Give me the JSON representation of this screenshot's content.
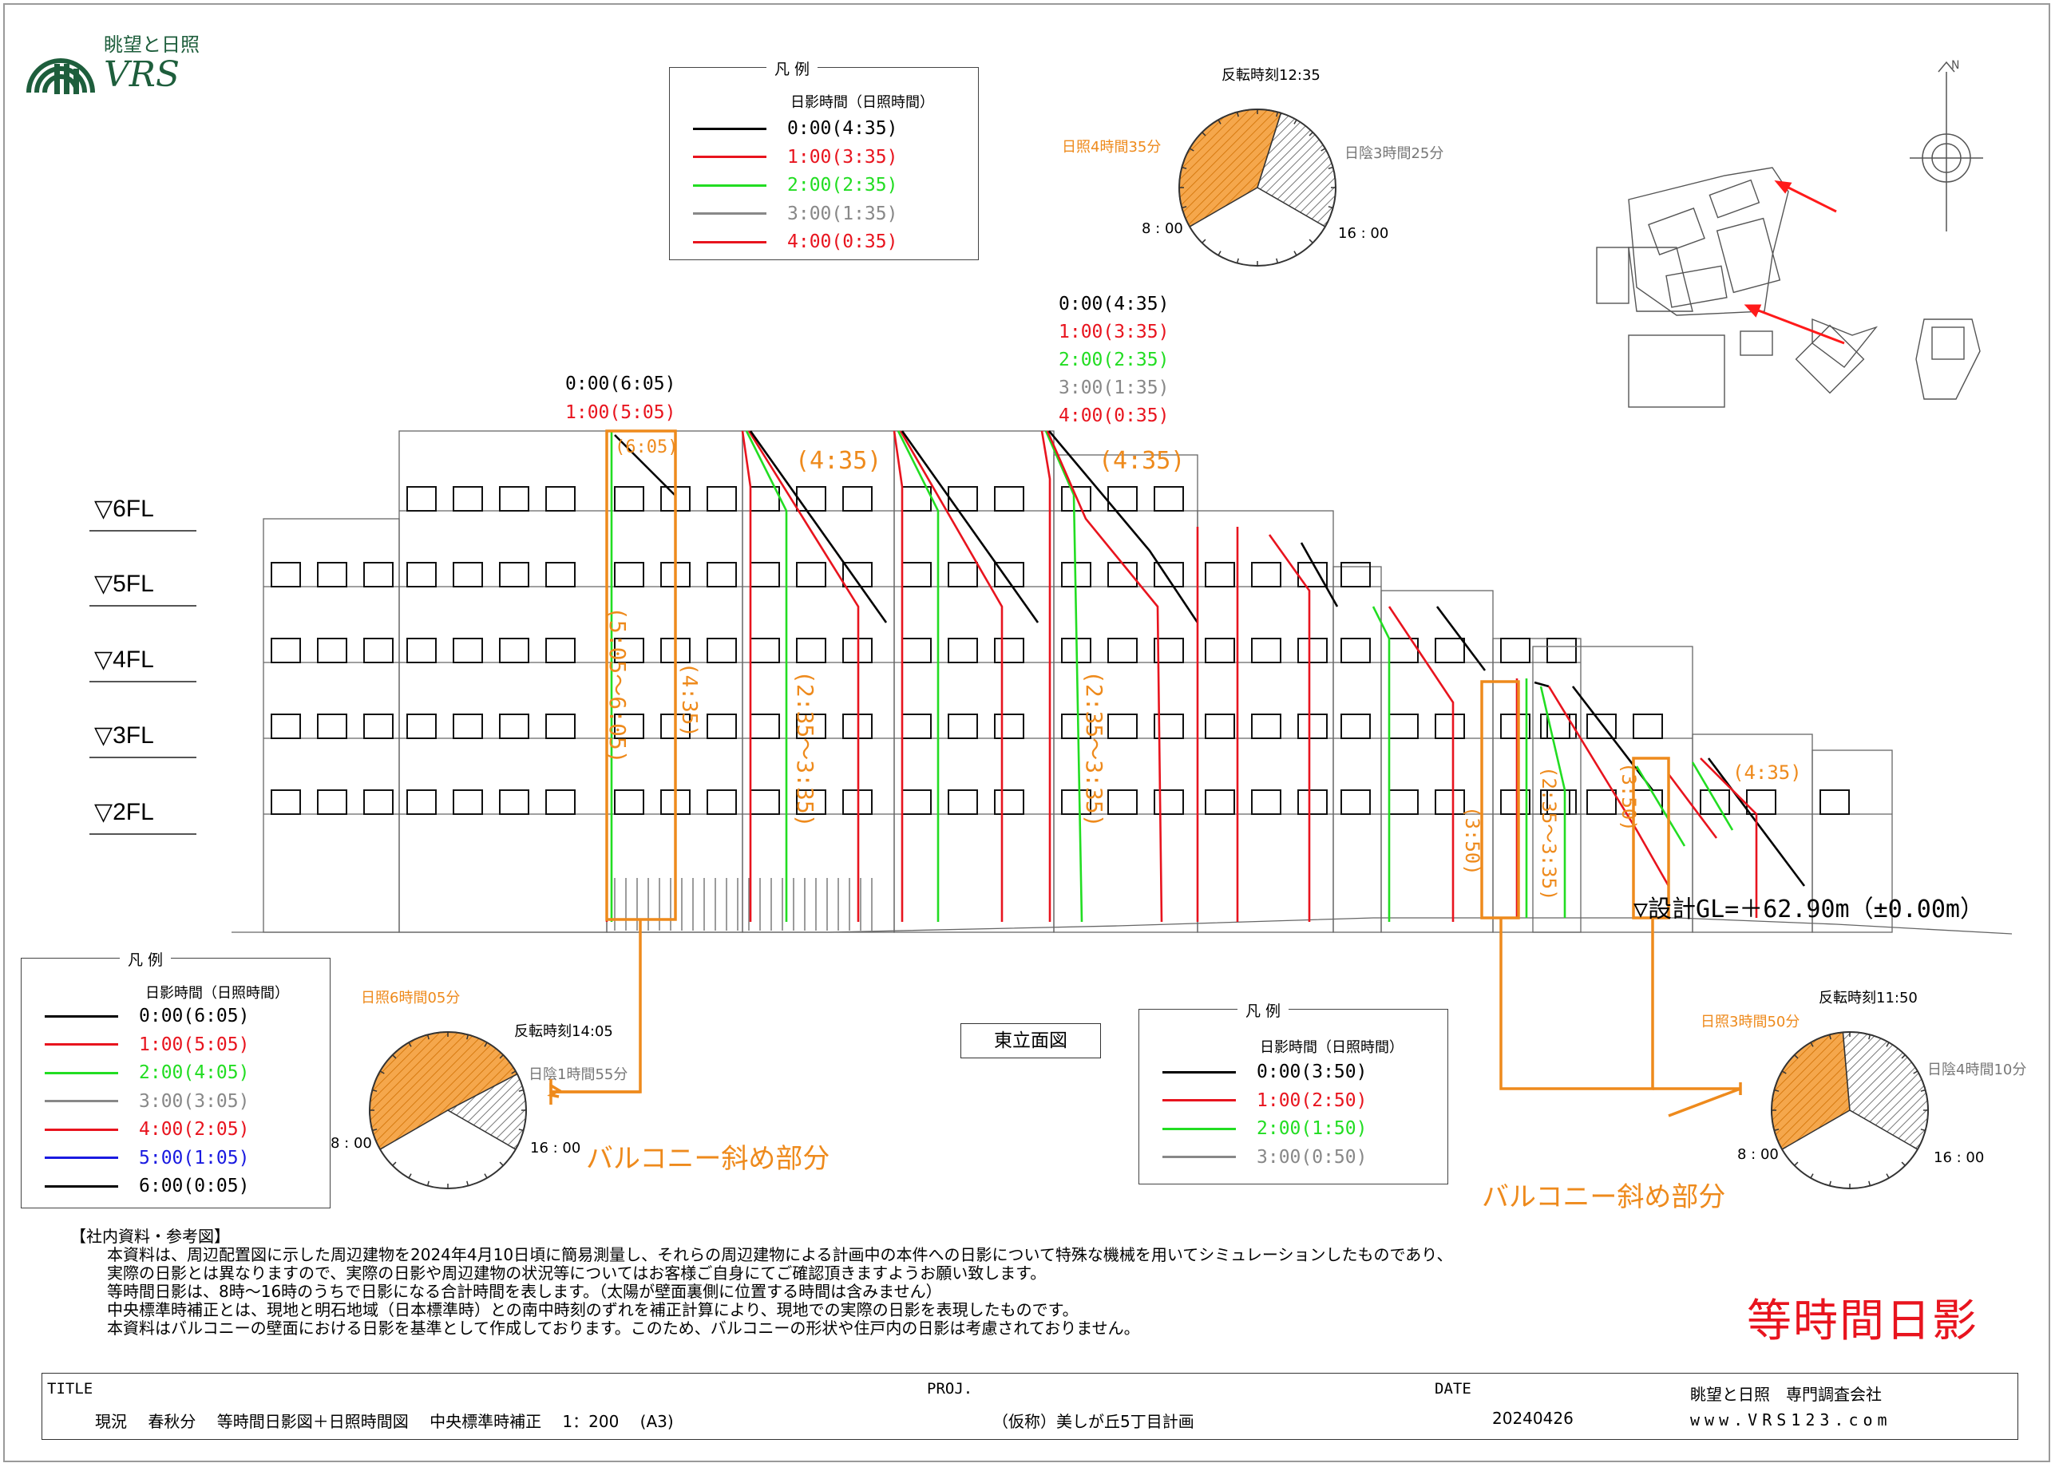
{
  "logo": {
    "japanese": "眺望と日照",
    "english": "VRS"
  },
  "legend_top": {
    "title": "凡 例",
    "subtitle": "日影時間（日照時間）",
    "items": [
      {
        "label": "0:00(4:35)",
        "color": "#000000"
      },
      {
        "label": "1:00(3:35)",
        "color": "#e8141e"
      },
      {
        "label": "2:00(2:35)",
        "color": "#22dd22"
      },
      {
        "label": "3:00(1:35)",
        "color": "#888888"
      },
      {
        "label": "4:00(0:35)",
        "color": "#e8141e"
      }
    ]
  },
  "legend_left": {
    "title": "凡 例",
    "subtitle": "日影時間（日照時間）",
    "items": [
      {
        "label": "0:00(6:05)",
        "color": "#000000"
      },
      {
        "label": "1:00(5:05)",
        "color": "#e8141e"
      },
      {
        "label": "2:00(4:05)",
        "color": "#22dd22"
      },
      {
        "label": "3:00(3:05)",
        "color": "#888888"
      },
      {
        "label": "4:00(2:05)",
        "color": "#e8141e"
      },
      {
        "label": "5:00(1:05)",
        "color": "#1a1ae0"
      },
      {
        "label": "6:00(0:05)",
        "color": "#000000"
      }
    ]
  },
  "legend_right": {
    "title": "凡 例",
    "subtitle": "日影時間（日照時間）",
    "items": [
      {
        "label": "0:00(3:50)",
        "color": "#000000"
      },
      {
        "label": "1:00(2:50)",
        "color": "#e8141e"
      },
      {
        "label": "2:00(1:50)",
        "color": "#22dd22"
      },
      {
        "label": "3:00(0:50)",
        "color": "#888888"
      }
    ]
  },
  "pies": [
    {
      "id": "top",
      "reversal": "反転時刻12:35",
      "sun": "日照4時間35分",
      "shade": "日陰3時間25分",
      "start": "8 : 00",
      "end": "16 : 00",
      "sun_hours": 4.583,
      "shade_hours": 3.417
    },
    {
      "id": "left",
      "reversal": "反転時刻14:05",
      "sun": "日照6時間05分",
      "shade": "日陰1時間55分",
      "start": "8 : 00",
      "end": "16 : 00",
      "sun_hours": 6.083,
      "shade_hours": 1.917
    },
    {
      "id": "right",
      "reversal": "反転時刻11:50",
      "sun": "日照3時間50分",
      "shade": "日陰4時間10分",
      "start": "8 : 00",
      "end": "16 : 00",
      "sun_hours": 3.833,
      "shade_hours": 4.167
    }
  ],
  "floors": [
    "▽6FL",
    "▽5FL",
    "▽4FL",
    "▽3FL",
    "▽2FL"
  ],
  "elevation_labels": {
    "group_a": [
      {
        "text": "0:00(6:05)",
        "color": "#000000"
      },
      {
        "text": "1:00(5:05)",
        "color": "#e8141e"
      }
    ],
    "group_b": [
      {
        "text": "0:00(4:35)",
        "color": "#000000"
      },
      {
        "text": "1:00(3:35)",
        "color": "#e8141e"
      },
      {
        "text": "2:00(2:35)",
        "color": "#22dd22"
      },
      {
        "text": "3:00(1:35)",
        "color": "#888888"
      },
      {
        "text": "4:00(0:35)",
        "color": "#e8141e"
      }
    ]
  },
  "orange_annotations": [
    "(6:05)",
    "(4:35)",
    "(4:35)",
    "(5:05〜6:05)",
    "(4:35)",
    "(2:35〜3:35)",
    "(2:35〜3:35)",
    "(3:50)",
    "(2:35〜3:35)",
    "(3:50)",
    "(4:35)"
  ],
  "balcony_note": "バルコニー斜め部分",
  "gl_label": "▽設計GL=＋62.90m（±0.00m）",
  "view_label": "東立面図",
  "notes": {
    "heading": "【社内資料・参考図】",
    "lines": [
      "本資料は、周辺配置図に示した周辺建物を2024年4月10日頃に簡易測量し、それらの周辺建物による計画中の本件への日影について特殊な機械を用いてシミュレーションしたものであり、",
      "実際の日影とは異なりますので、実際の日影や周辺建物の状況等についてはお客様ご自身にてご確認頂きますようお願い致します。",
      "等時間日影は、8時〜16時のうちで日影になる合計時間を表します。（太陽が壁面裏側に位置する時間は含みません）",
      "中央標準時補正とは、現地と明石地域（日本標準時）との南中時刻のずれを補正計算により、現地での実際の日影を表現したものです。",
      "本資料はバルコニーの壁面における日影を基準として作成しております。このため、バルコニーの形状や住戸内の日影は考慮されておりません。"
    ]
  },
  "big_title": "等時間日影",
  "title_block": {
    "title_head": "TITLE",
    "title_value": "現況　 春秋分　 等時間日影図＋日照時間図　 中央標準時補正　 1：200　 (A3)",
    "proj_head": "PROJ.",
    "proj_value": "（仮称）美しが丘5丁目計画",
    "date_head": "DATE",
    "date_value": "20240426",
    "company": "眺望と日照　専門調査会社",
    "url": "www.VRS123.com"
  },
  "compass": "N",
  "colors": {
    "black": "#000000",
    "red": "#e8141e",
    "green": "#22dd22",
    "gray": "#888888",
    "blue": "#1a1ae0",
    "orange": "#ee8a1c",
    "logo": "#1e5e3c"
  }
}
